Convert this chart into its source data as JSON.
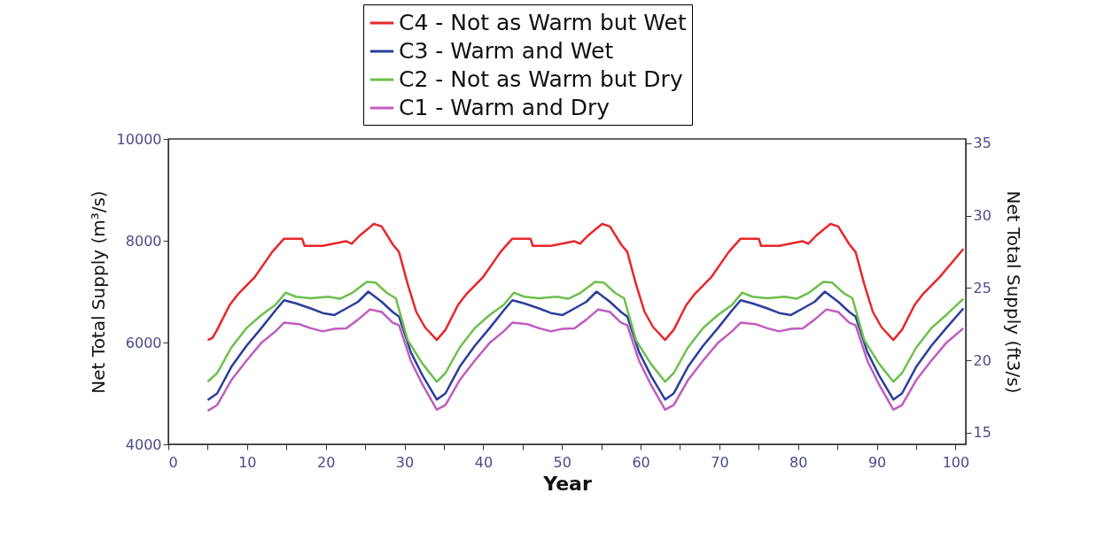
{
  "chart_data": {
    "type": "line",
    "xlabel": "Year",
    "ylabel": "Net Total Supply (m³/s)",
    "y2label": "Net Total Supply (ft3/s)",
    "xlim": [
      0,
      101.3
    ],
    "xticks": [
      0,
      {
        "value": 5,
        "label": null
      },
      10,
      {
        "value": 15,
        "label": null
      },
      20,
      {
        "value": 25,
        "label": null
      },
      30,
      {
        "value": 35,
        "label": null
      },
      40,
      {
        "value": 45,
        "label": null
      },
      50,
      {
        "value": 55,
        "label": null
      },
      60,
      {
        "value": 65,
        "label": null
      },
      70,
      {
        "value": 75,
        "label": null
      },
      80,
      {
        "value": 85,
        "label": null
      },
      90,
      {
        "value": 95,
        "label": null
      },
      100
    ],
    "ylim": [
      4000,
      10000
    ],
    "yticks": [
      4000,
      6000,
      8000,
      10000
    ],
    "y2lim": [
      14.2,
      35.3
    ],
    "y2ticks": [
      15,
      20,
      25,
      30,
      35
    ],
    "legend": "top",
    "series": [
      {
        "name": "C4 - Not as Warm but Wet",
        "color": "#e8262a",
        "x": [
          5,
          5.6,
          6.2,
          7.8,
          8.8,
          11,
          13.2,
          14.7,
          17,
          17.3,
          19.6,
          22.6,
          23.3,
          24.3,
          26.1,
          27.1,
          28.5,
          29.3,
          30.4,
          31.5,
          32.6,
          34.1,
          35.2,
          36.8,
          37.8,
          40,
          42.2,
          43.7,
          46,
          46.3,
          48.6,
          51.6,
          52.3,
          53.3,
          55.1,
          56.1,
          57.5,
          58.3,
          59.4,
          60.5,
          61.6,
          63.1,
          64.2,
          65.8,
          66.8,
          69,
          71.2,
          72.7,
          75,
          75.3,
          77.6,
          80.6,
          81.3,
          82.3,
          84.1,
          85.1,
          86.5,
          87.3,
          88.4,
          89.5,
          90.6,
          92.1,
          93.2,
          94.8,
          95.8,
          98,
          101
        ],
        "values": [
          6050,
          6090,
          6250,
          6740,
          6940,
          7290,
          7780,
          8040,
          8040,
          7900,
          7900,
          7990,
          7940,
          8100,
          8330,
          8280,
          7930,
          7780,
          7150,
          6600,
          6300,
          6050,
          6250,
          6740,
          6940,
          7290,
          7780,
          8040,
          8040,
          7900,
          7900,
          7990,
          7940,
          8100,
          8330,
          8280,
          7930,
          7780,
          7150,
          6600,
          6300,
          6050,
          6250,
          6740,
          6940,
          7290,
          7780,
          8040,
          8040,
          7900,
          7900,
          7990,
          7940,
          8100,
          8330,
          8280,
          7930,
          7780,
          7150,
          6600,
          6300,
          6050,
          6250,
          6740,
          6940,
          7290,
          7840
        ]
      },
      {
        "name": "C3 - Warm and Wet",
        "color": "#2b3e9b",
        "x": [
          5,
          6.2,
          8,
          9.9,
          11.8,
          13.6,
          14.7,
          16.2,
          18.1,
          19.6,
          21.1,
          22.6,
          24.1,
          25.4,
          27.1,
          28.5,
          29.3,
          30.8,
          32.3,
          34.1,
          35.2,
          37,
          38.9,
          40.8,
          42.6,
          43.7,
          45.2,
          47.1,
          48.6,
          50.1,
          51.6,
          53.1,
          54.4,
          56.1,
          57.5,
          58.3,
          59.8,
          61.3,
          63.1,
          64.2,
          66,
          67.9,
          69.8,
          71.6,
          72.7,
          74.2,
          76.1,
          77.6,
          79.1,
          80.6,
          82.1,
          83.4,
          85.1,
          86.5,
          87.3,
          88.8,
          90.3,
          92.1,
          93.2,
          95,
          96.9,
          98.8,
          101
        ],
        "values": [
          4870,
          5000,
          5520,
          5930,
          6280,
          6630,
          6830,
          6770,
          6670,
          6580,
          6540,
          6670,
          6800,
          7000,
          6800,
          6600,
          6510,
          5810,
          5350,
          4880,
          5000,
          5520,
          5930,
          6280,
          6630,
          6830,
          6770,
          6670,
          6580,
          6540,
          6670,
          6800,
          7000,
          6800,
          6600,
          6510,
          5810,
          5350,
          4880,
          5000,
          5520,
          5930,
          6280,
          6630,
          6830,
          6770,
          6670,
          6580,
          6540,
          6670,
          6800,
          7000,
          6800,
          6600,
          6510,
          5810,
          5350,
          4880,
          5000,
          5520,
          5930,
          6280,
          6670
        ]
      },
      {
        "name": "C2 - Not as Warm but Dry",
        "color": "#6cc04a",
        "x": [
          5,
          6.2,
          8,
          9.9,
          11.8,
          13.6,
          14.9,
          16.2,
          18.1,
          20.3,
          21.8,
          23.3,
          25.2,
          26.3,
          27.8,
          28.9,
          30.4,
          32.3,
          34.1,
          35.2,
          37,
          38.9,
          40.8,
          42.6,
          43.9,
          45.2,
          47.1,
          49.3,
          50.8,
          52.3,
          54.2,
          55.3,
          56.8,
          57.9,
          59.4,
          61.3,
          63.1,
          64.2,
          66,
          67.9,
          69.8,
          71.6,
          72.9,
          74.2,
          76.1,
          78.3,
          79.8,
          81.3,
          83.2,
          84.3,
          85.8,
          86.9,
          88.4,
          90.3,
          92.1,
          93.2,
          95,
          96.9,
          98.8,
          101
        ],
        "values": [
          5230,
          5400,
          5900,
          6280,
          6540,
          6740,
          6980,
          6900,
          6870,
          6900,
          6860,
          6970,
          7190,
          7180,
          6970,
          6870,
          6050,
          5580,
          5230,
          5400,
          5900,
          6280,
          6540,
          6740,
          6980,
          6900,
          6870,
          6900,
          6860,
          6970,
          7190,
          7180,
          6970,
          6870,
          6050,
          5580,
          5230,
          5400,
          5900,
          6280,
          6540,
          6740,
          6980,
          6900,
          6870,
          6900,
          6860,
          6970,
          7190,
          7180,
          6970,
          6870,
          6050,
          5580,
          5230,
          5400,
          5900,
          6280,
          6540,
          6860
        ]
      },
      {
        "name": "C1 - Warm and Dry",
        "color": "#c05cc0",
        "x": [
          5,
          6.2,
          8,
          9.9,
          11.8,
          13.6,
          14.7,
          16.6,
          18.1,
          19.6,
          21.1,
          22.6,
          24.1,
          25.6,
          27.1,
          28.5,
          29.3,
          30.8,
          32.3,
          34.1,
          35.2,
          37,
          38.9,
          40.8,
          42.6,
          43.7,
          45.6,
          47.1,
          48.6,
          50.1,
          51.6,
          53.1,
          54.6,
          56.1,
          57.5,
          58.3,
          59.8,
          61.3,
          63.1,
          64.2,
          66,
          67.9,
          69.8,
          71.6,
          72.7,
          74.6,
          76.1,
          77.6,
          79.1,
          80.6,
          82.1,
          83.6,
          85.1,
          86.5,
          87.3,
          88.8,
          90.3,
          92.1,
          93.2,
          95,
          96.9,
          98.8,
          101
        ],
        "values": [
          4660,
          4770,
          5260,
          5640,
          5990,
          6220,
          6390,
          6360,
          6280,
          6220,
          6270,
          6280,
          6450,
          6650,
          6600,
          6390,
          6340,
          5640,
          5170,
          4680,
          4770,
          5260,
          5640,
          5990,
          6220,
          6390,
          6360,
          6280,
          6220,
          6270,
          6280,
          6450,
          6650,
          6600,
          6390,
          6340,
          5640,
          5170,
          4680,
          4770,
          5260,
          5640,
          5990,
          6220,
          6390,
          6360,
          6280,
          6220,
          6270,
          6280,
          6450,
          6650,
          6600,
          6390,
          6340,
          5640,
          5170,
          4680,
          4770,
          5260,
          5640,
          5990,
          6280
        ]
      }
    ]
  }
}
